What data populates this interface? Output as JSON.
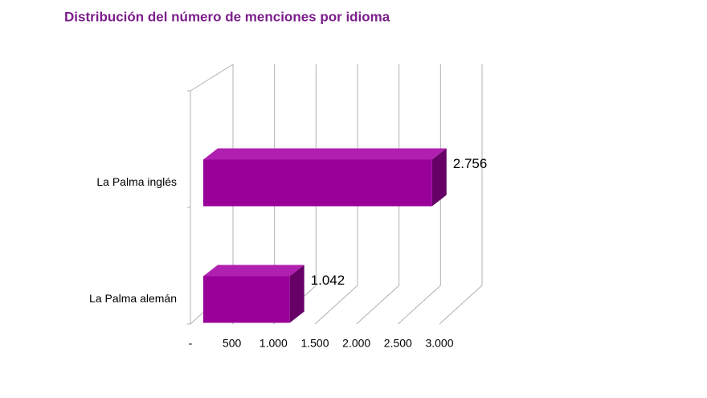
{
  "chart_data": {
    "type": "bar3d-horizontal",
    "title": "Distribución del número de menciones por idioma",
    "categories": [
      "La Palma inglés",
      "La Palma alemán"
    ],
    "values": [
      2756,
      1042
    ],
    "value_labels": [
      "2.756",
      "1.042"
    ],
    "color": "#990099",
    "xlim": [
      0,
      3000
    ],
    "xticks": [
      {
        "value": 0,
        "label": "-"
      },
      500,
      {
        "value": 1000,
        "label": "1.000"
      },
      {
        "value": 1500,
        "label": "1.500"
      },
      {
        "value": 2000,
        "label": "2.000"
      },
      {
        "value": 2500,
        "label": "2.500"
      },
      {
        "value": 3000,
        "label": "3.000"
      }
    ],
    "grid": true
  }
}
